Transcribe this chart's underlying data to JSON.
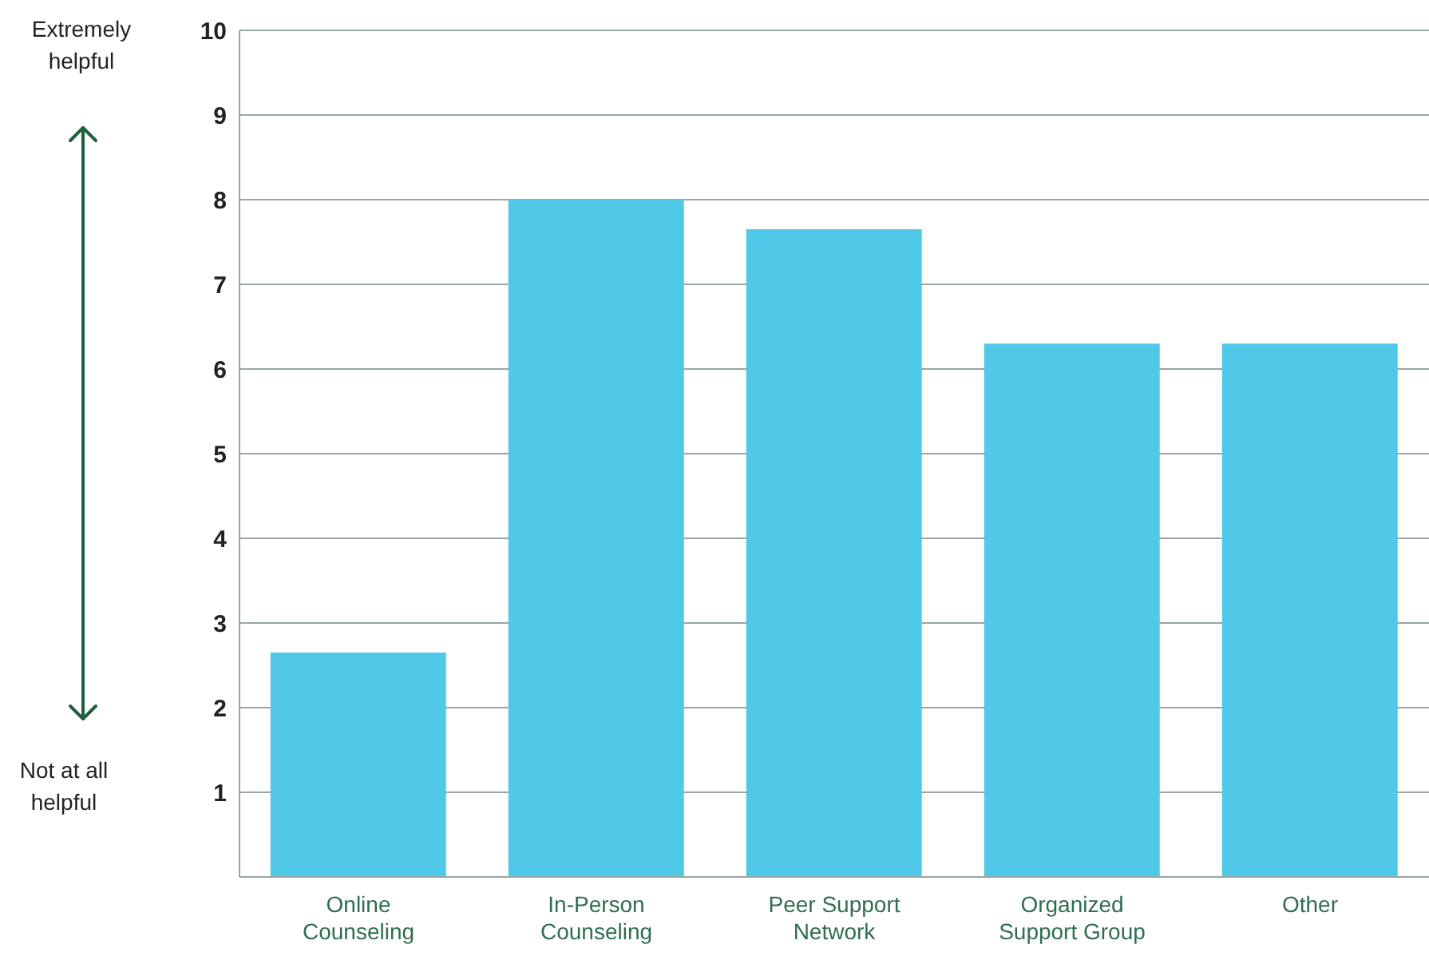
{
  "chart_data": {
    "type": "bar",
    "categories": [
      "Online Counseling",
      "In-Person Counseling",
      "Peer Support Network",
      "Organized Support Group",
      "Other"
    ],
    "values": [
      2.65,
      8.0,
      7.65,
      6.3,
      6.3
    ],
    "color": "#50c8e8",
    "ylim": [
      0,
      10
    ],
    "yticks": [
      1,
      2,
      3,
      4,
      5,
      6,
      7,
      8,
      9,
      10
    ],
    "grid": "y",
    "annotations": [
      "Extremely helpful",
      "Not at all helpful"
    ]
  }
}
